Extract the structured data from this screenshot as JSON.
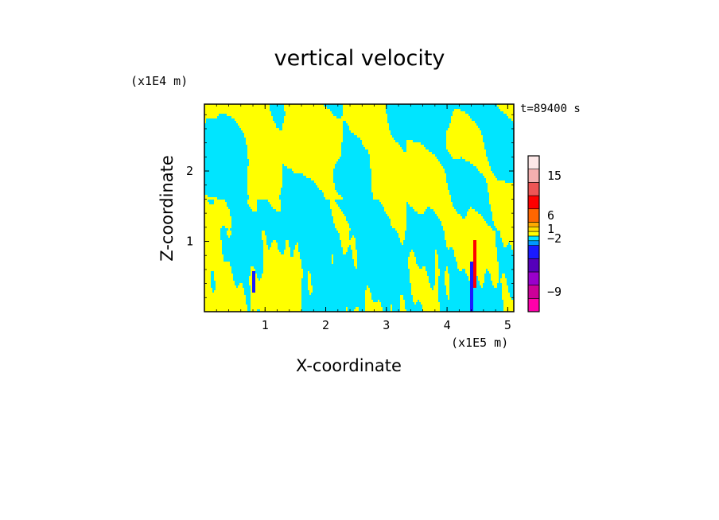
{
  "chart_data": {
    "type": "heatmap",
    "title": "vertical velocity",
    "xlabel": "X-coordinate",
    "ylabel": "Z-coordinate",
    "x_unit_label": "(x1E5 m)",
    "y_unit_label": "(x1E4 m)",
    "time_label": "t=89400 s",
    "xlim": [
      0,
      5.1
    ],
    "ylim": [
      0,
      2.95
    ],
    "x_ticks": [
      1,
      2,
      3,
      4,
      5
    ],
    "y_ticks": [
      1,
      2
    ],
    "colorbar": {
      "levels": [
        {
          "color": "#ff00aa",
          "lower": null
        },
        {
          "color": "#cc0099",
          "lower": null
        },
        {
          "color": "#9900cc",
          "lower": null
        },
        {
          "color": "#5500bb",
          "lower": null
        },
        {
          "color": "#1a1aff",
          "lower": null
        },
        {
          "color": "#0099ff",
          "lower": null
        },
        {
          "color": "#00e5ff",
          "lower": null
        },
        {
          "color": "#ffff00",
          "lower": null
        },
        {
          "color": "#ffdd00",
          "lower": null
        },
        {
          "color": "#ffaa00",
          "lower": null
        },
        {
          "color": "#ff6600",
          "lower": null
        },
        {
          "color": "#ff0000",
          "lower": null
        },
        {
          "color": "#ee5555",
          "lower": null
        },
        {
          "color": "#f4b0b0",
          "lower": null
        },
        {
          "color": "#fde8e8",
          "lower": null
        }
      ],
      "tick_labels": [
        {
          "text": "15",
          "level_index": 13
        },
        {
          "text": "6",
          "level_index": 10
        },
        {
          "text": "1",
          "level_index": 8
        },
        {
          "text": "-2",
          "level_index": 6
        },
        {
          "text": "-9",
          "level_index": 1
        }
      ]
    },
    "field_colors": {
      "positive": "#ffff00",
      "negative": "#00e5ff",
      "strong_negative": "#1a1aff",
      "strong_positive": "#ff0000"
    }
  }
}
